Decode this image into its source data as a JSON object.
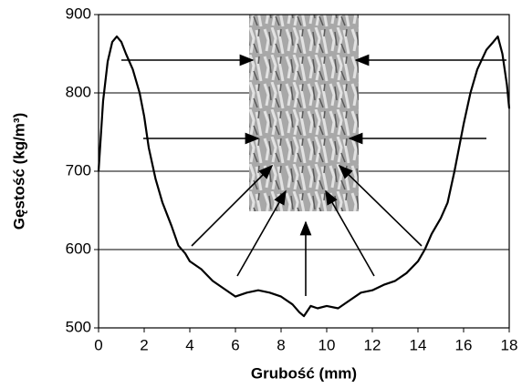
{
  "chart_data": {
    "type": "line",
    "xlabel": "Grubość (mm)",
    "ylabel": "Gęstość (kg/m³)",
    "xlim": [
      0,
      18
    ],
    "xticks": [
      0,
      2,
      4,
      6,
      8,
      10,
      12,
      14,
      16,
      18
    ],
    "ylim": [
      500,
      900
    ],
    "yticks": [
      500,
      600,
      700,
      800,
      900
    ],
    "grid": true,
    "x": [
      0,
      0.2,
      0.4,
      0.6,
      0.8,
      1.0,
      1.2,
      1.5,
      1.8,
      2.0,
      2.2,
      2.5,
      2.8,
      3.0,
      3.2,
      3.5,
      3.8,
      4.0,
      4.5,
      5.0,
      5.5,
      6.0,
      6.5,
      7.0,
      7.5,
      8.0,
      8.5,
      8.8,
      9.0,
      9.3,
      9.6,
      10.0,
      10.5,
      11.0,
      11.5,
      12.0,
      12.5,
      13.0,
      13.5,
      14.0,
      14.3,
      14.6,
      15.0,
      15.3,
      15.6,
      16.0,
      16.3,
      16.6,
      17.0,
      17.3,
      17.5,
      17.7,
      17.9,
      18.0
    ],
    "series": [
      {
        "color": "#000000",
        "values": [
          700,
          790,
          840,
          865,
          872,
          865,
          850,
          830,
          800,
          770,
          730,
          690,
          660,
          645,
          630,
          605,
          595,
          585,
          575,
          560,
          550,
          540,
          545,
          548,
          545,
          540,
          530,
          520,
          515,
          528,
          525,
          528,
          525,
          535,
          545,
          548,
          555,
          560,
          570,
          585,
          600,
          620,
          640,
          660,
          700,
          760,
          800,
          830,
          855,
          865,
          872,
          850,
          810,
          780
        ]
      }
    ]
  }
}
